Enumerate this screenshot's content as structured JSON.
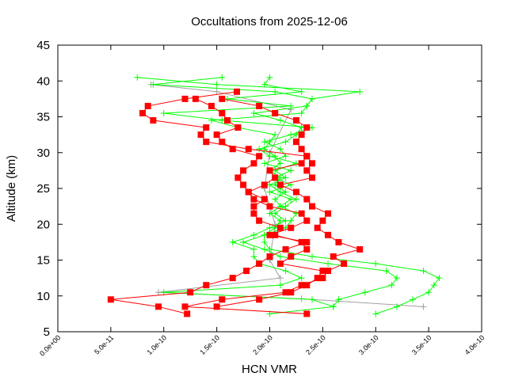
{
  "chart_data": {
    "type": "line",
    "title": "Occultations from 2025-12-06",
    "xlabel": "HCN VMR",
    "ylabel": "Altitude (km)",
    "xlim": [
      0,
      4e-10
    ],
    "ylim": [
      5,
      45
    ],
    "x_ticks": [
      "0.0e+00",
      "5.0e-11",
      "1.0e-10",
      "1.5e-10",
      "2.0e-10",
      "2.5e-10",
      "3.0e-10",
      "3.5e-10",
      "4.0e-10"
    ],
    "y_ticks": [
      "5",
      "10",
      "15",
      "20",
      "25",
      "30",
      "35",
      "40",
      "45"
    ],
    "grid": false,
    "legend": "none",
    "series": [
      {
        "color": "#a0a0a0",
        "marker": "plus",
        "points": [
          [
            8.8e-11,
            39.5
          ],
          [
            1.5e-10,
            38.5
          ],
          [
            2.2e-10,
            36
          ],
          [
            2e-10,
            30
          ],
          [
            1.95e-10,
            25
          ],
          [
            2.05e-10,
            20
          ],
          [
            2e-10,
            15
          ],
          [
            2.1e-10,
            12.5
          ],
          [
            9.5e-11,
            10.5
          ],
          [
            2.3e-10,
            9.6
          ],
          [
            3.45e-10,
            8.5
          ]
        ]
      },
      {
        "color": "#00ff00",
        "marker": "plus",
        "points": [
          [
            3e-10,
            7.5
          ],
          [
            3.2e-10,
            8.5
          ],
          [
            3.35e-10,
            9.5
          ],
          [
            3.5e-10,
            10.5
          ],
          [
            3.55e-10,
            11.5
          ],
          [
            3.6e-10,
            12.5
          ],
          [
            3.45e-10,
            13.5
          ],
          [
            3e-10,
            14.5
          ],
          [
            2.4e-10,
            15.5
          ],
          [
            2e-10,
            16.5
          ],
          [
            1.95e-10,
            17.5
          ],
          [
            1.95e-10,
            18.5
          ],
          [
            2.05e-10,
            19.5
          ],
          [
            2.1e-10,
            20.5
          ],
          [
            2e-10,
            21.5
          ],
          [
            2.1e-10,
            22.5
          ],
          [
            2.05e-10,
            23.5
          ],
          [
            2.15e-10,
            24.5
          ],
          [
            2.05e-10,
            25.5
          ],
          [
            2.1e-10,
            26.5
          ],
          [
            2e-10,
            27.5
          ],
          [
            2.1e-10,
            28.5
          ],
          [
            2.05e-10,
            29.5
          ],
          [
            1.95e-10,
            30.5
          ],
          [
            2e-10,
            31.5
          ],
          [
            2.05e-10,
            32.5
          ],
          [
            1.7e-10,
            33.5
          ],
          [
            1.45e-10,
            34.5
          ],
          [
            2.3e-10,
            35.5
          ],
          [
            2.35e-10,
            36.5
          ],
          [
            2.4e-10,
            37.5
          ],
          [
            2.85e-10,
            38.5
          ],
          [
            1.5e-10,
            39.5
          ],
          [
            7.5e-11,
            40.5
          ]
        ]
      },
      {
        "color": "#00ff00",
        "marker": "plus",
        "points": [
          [
            2e-10,
            7.5
          ],
          [
            2.6e-10,
            8.5
          ],
          [
            2.65e-10,
            9.5
          ],
          [
            2.9e-10,
            10.5
          ],
          [
            3.15e-10,
            11.5
          ],
          [
            3.2e-10,
            12.5
          ],
          [
            3.1e-10,
            13.5
          ],
          [
            2.55e-10,
            14.5
          ],
          [
            2.1e-10,
            15.5
          ],
          [
            1.95e-10,
            16.5
          ],
          [
            1.75e-10,
            17.5
          ],
          [
            1.95e-10,
            18.5
          ],
          [
            2.15e-10,
            19.5
          ],
          [
            2.2e-10,
            20.5
          ],
          [
            2.25e-10,
            21.5
          ],
          [
            2.1e-10,
            22.5
          ],
          [
            2.2e-10,
            23.5
          ],
          [
            2e-10,
            24.5
          ],
          [
            2.2e-10,
            25.5
          ],
          [
            2.05e-10,
            26.5
          ],
          [
            2.2e-10,
            27.5
          ],
          [
            1.95e-10,
            28.5
          ],
          [
            2.15e-10,
            29.5
          ],
          [
            2.1e-10,
            30.5
          ],
          [
            1.95e-10,
            31.5
          ],
          [
            2.2e-10,
            32.5
          ],
          [
            2.4e-10,
            33.5
          ],
          [
            1.55e-10,
            34.5
          ],
          [
            1e-10,
            35.5
          ],
          [
            2.2e-10,
            36.5
          ],
          [
            1.6e-10,
            37.5
          ],
          [
            2.3e-10,
            38.5
          ],
          [
            1.95e-10,
            39.5
          ],
          [
            2e-10,
            40.5
          ]
        ]
      },
      {
        "color": "#00ff00",
        "marker": "plus",
        "points": [
          [
            2.6e-10,
            8.5
          ],
          [
            2.4e-10,
            9.5
          ],
          [
            1e-10,
            10.5
          ],
          [
            2.1e-10,
            11.5
          ],
          [
            2.3e-10,
            12.5
          ],
          [
            2.15e-10,
            13.5
          ],
          [
            1.9e-10,
            14.5
          ],
          [
            1.85e-10,
            15.5
          ],
          [
            1.85e-10,
            16.5
          ],
          [
            1.65e-10,
            17.5
          ],
          [
            1.85e-10,
            18.5
          ],
          [
            2e-10,
            19.5
          ],
          [
            2.15e-10,
            20.5
          ],
          [
            2.05e-10,
            21.5
          ],
          [
            2.15e-10,
            22.5
          ],
          [
            2.25e-10,
            23.5
          ],
          [
            2.1e-10,
            24.5
          ],
          [
            2e-10,
            25.5
          ],
          [
            2.15e-10,
            26.5
          ],
          [
            2.05e-10,
            27.5
          ],
          [
            2.25e-10,
            28.5
          ],
          [
            2e-10,
            29.5
          ],
          [
            1.9e-10,
            30.5
          ],
          [
            2.15e-10,
            31.5
          ],
          [
            2.25e-10,
            32.5
          ],
          [
            2.3e-10,
            33.5
          ],
          [
            2.1e-10,
            34.5
          ],
          [
            1.85e-10,
            35.5
          ],
          [
            2.35e-10,
            36.5
          ],
          [
            2.4e-10,
            37.5
          ],
          [
            2.05e-10,
            38.5
          ],
          [
            9e-11,
            39.5
          ],
          [
            1.55e-10,
            40.5
          ]
        ]
      },
      {
        "color": "#ff0000",
        "marker": "square",
        "points": [
          [
            1.22e-10,
            7.5
          ],
          [
            9.5e-11,
            8.5
          ],
          [
            5e-11,
            9.5
          ],
          [
            1.25e-10,
            10.5
          ],
          [
            1.4e-10,
            11.5
          ],
          [
            1.65e-10,
            12.5
          ],
          [
            1.78e-10,
            13.5
          ],
          [
            1.9e-10,
            14.5
          ],
          [
            2e-10,
            15.5
          ],
          [
            2.15e-10,
            16.5
          ],
          [
            2.35e-10,
            17.5
          ],
          [
            2e-10,
            18.5
          ],
          [
            2.2e-10,
            19.5
          ],
          [
            2.35e-10,
            20.5
          ],
          [
            2.3e-10,
            21.5
          ],
          [
            2e-10,
            22.5
          ],
          [
            1.85e-10,
            23.5
          ],
          [
            1.8e-10,
            24.5
          ],
          [
            1.95e-10,
            25.5
          ],
          [
            2.05e-10,
            26.5
          ],
          [
            2e-10,
            27.5
          ],
          [
            2.3e-10,
            28.5
          ],
          [
            2.35e-10,
            29.5
          ],
          [
            1.8e-10,
            30.5
          ],
          [
            1.4e-10,
            31.5
          ],
          [
            1.35e-10,
            32.5
          ],
          [
            1.4e-10,
            33.5
          ],
          [
            9e-11,
            34.5
          ],
          [
            8e-11,
            35.5
          ],
          [
            8.5e-11,
            36.5
          ],
          [
            1.2e-10,
            37.5
          ],
          [
            1.69e-10,
            38.5
          ]
        ]
      },
      {
        "color": "#ff0000",
        "marker": "square",
        "points": [
          [
            2.35e-10,
            7.5
          ],
          [
            1.2e-10,
            8.5
          ],
          [
            1.55e-10,
            9.5
          ],
          [
            2.15e-10,
            10.5
          ],
          [
            2.3e-10,
            11.5
          ],
          [
            2.5e-10,
            12.5
          ],
          [
            2.55e-10,
            13.5
          ],
          [
            2.7e-10,
            14.5
          ],
          [
            2.6e-10,
            15.5
          ],
          [
            2.85e-10,
            16.5
          ],
          [
            2.65e-10,
            17.5
          ],
          [
            2.55e-10,
            18.5
          ],
          [
            2.45e-10,
            19.5
          ],
          [
            2.5e-10,
            20.5
          ],
          [
            2.55e-10,
            21.5
          ],
          [
            2.4e-10,
            22.5
          ],
          [
            2.35e-10,
            23.5
          ],
          [
            2.25e-10,
            24.5
          ],
          [
            2.1e-10,
            25.5
          ],
          [
            2.4e-10,
            26.5
          ],
          [
            2.35e-10,
            27.5
          ],
          [
            2.4e-10,
            28.5
          ],
          [
            2.35e-10,
            29.5
          ],
          [
            2.3e-10,
            30.5
          ],
          [
            2.25e-10,
            31.5
          ],
          [
            2.3e-10,
            32.5
          ],
          [
            2.35e-10,
            33.5
          ],
          [
            2.25e-10,
            34.5
          ],
          [
            2.05e-10,
            35.5
          ],
          [
            1.9e-10,
            36.5
          ],
          [
            1.55e-10,
            37.5
          ]
        ]
      },
      {
        "color": "#ff0000",
        "marker": "square",
        "points": [
          [
            1.5e-10,
            8.5
          ],
          [
            1.9e-10,
            9.5
          ],
          [
            2.2e-10,
            10.5
          ],
          [
            2.35e-10,
            11.5
          ],
          [
            2.45e-10,
            12.5
          ],
          [
            2.5e-10,
            13.5
          ],
          [
            2.1e-10,
            14.5
          ],
          [
            2.2e-10,
            15.5
          ],
          [
            2.35e-10,
            16.5
          ],
          [
            2.3e-10,
            17.5
          ],
          [
            2.05e-10,
            18.5
          ],
          [
            2.1e-10,
            19.5
          ],
          [
            1.9e-10,
            20.5
          ],
          [
            1.85e-10,
            21.5
          ],
          [
            1.85e-10,
            22.5
          ],
          [
            1.95e-10,
            23.5
          ],
          [
            1.8e-10,
            24.5
          ],
          [
            1.75e-10,
            25.5
          ],
          [
            1.7e-10,
            26.5
          ],
          [
            1.75e-10,
            27.5
          ],
          [
            1.85e-10,
            28.5
          ],
          [
            1.9e-10,
            29.5
          ],
          [
            1.65e-10,
            30.5
          ],
          [
            1.55e-10,
            31.5
          ],
          [
            1.5e-10,
            32.5
          ],
          [
            1.7e-10,
            33.5
          ],
          [
            1.6e-10,
            34.5
          ],
          [
            1.55e-10,
            35.5
          ],
          [
            1.45e-10,
            36.5
          ],
          [
            1.3e-10,
            37.5
          ]
        ]
      }
    ]
  }
}
